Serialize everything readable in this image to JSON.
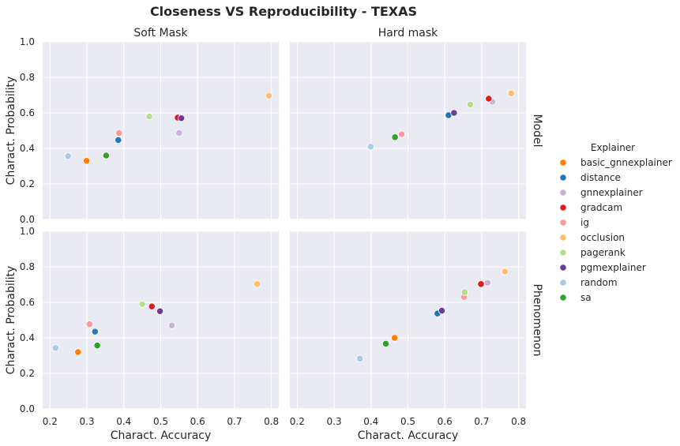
{
  "chart_data": {
    "type": "scatter",
    "title": "Closeness VS Reproducibility - TEXAS",
    "xlabel": "Charact. Accuracy",
    "ylabel": "Charact. Probability",
    "col_titles": [
      "Soft Mask",
      "Hard mask"
    ],
    "row_titles": [
      "Model",
      "Phenomenon"
    ],
    "xlim": [
      0.18,
      0.82
    ],
    "ylim": [
      0.0,
      1.0
    ],
    "xticks": [
      "0.2",
      "0.3",
      "0.4",
      "0.5",
      "0.6",
      "0.7",
      "0.8"
    ],
    "yticks": [
      "0.0",
      "0.2",
      "0.4",
      "0.6",
      "0.8",
      "1.0"
    ],
    "grid": true,
    "legend": {
      "title": "Explainer",
      "placement": "right",
      "entries": [
        {
          "name": "basic_gnnexplainer",
          "color": "#ff7f00"
        },
        {
          "name": "distance",
          "color": "#1f78b4"
        },
        {
          "name": "gnnexplainer",
          "color": "#cab2d6"
        },
        {
          "name": "gradcam",
          "color": "#e31a1c"
        },
        {
          "name": "ig",
          "color": "#fb9a99"
        },
        {
          "name": "occlusion",
          "color": "#fdbf6f"
        },
        {
          "name": "pagerank",
          "color": "#b2df8a"
        },
        {
          "name": "pgmexplainer",
          "color": "#6a3d9a"
        },
        {
          "name": "random",
          "color": "#a6cee3"
        },
        {
          "name": "sa",
          "color": "#33a02c"
        }
      ]
    },
    "panels": [
      {
        "row": "Model",
        "col": "Soft Mask",
        "points": [
          {
            "explainer": "basic_gnnexplainer",
            "x": 0.299,
            "y": 0.33
          },
          {
            "explainer": "distance",
            "x": 0.385,
            "y": 0.447
          },
          {
            "explainer": "gnnexplainer",
            "x": 0.55,
            "y": 0.487
          },
          {
            "explainer": "gradcam",
            "x": 0.546,
            "y": 0.573
          },
          {
            "explainer": "ig",
            "x": 0.387,
            "y": 0.487
          },
          {
            "explainer": "occlusion",
            "x": 0.793,
            "y": 0.697
          },
          {
            "explainer": "pagerank",
            "x": 0.469,
            "y": 0.58
          },
          {
            "explainer": "pgmexplainer",
            "x": 0.556,
            "y": 0.57
          },
          {
            "explainer": "random",
            "x": 0.249,
            "y": 0.357
          },
          {
            "explainer": "sa",
            "x": 0.352,
            "y": 0.36
          }
        ]
      },
      {
        "row": "Model",
        "col": "Hard mask",
        "points": [
          {
            "explainer": "basic_gnnexplainer",
            "x": 0.484,
            "y": 0.48
          },
          {
            "explainer": "distance",
            "x": 0.61,
            "y": 0.587
          },
          {
            "explainer": "gnnexplainer",
            "x": 0.729,
            "y": 0.663
          },
          {
            "explainer": "gradcam",
            "x": 0.719,
            "y": 0.68
          },
          {
            "explainer": "ig",
            "x": 0.483,
            "y": 0.48
          },
          {
            "explainer": "occlusion",
            "x": 0.78,
            "y": 0.71
          },
          {
            "explainer": "pagerank",
            "x": 0.669,
            "y": 0.647
          },
          {
            "explainer": "pgmexplainer",
            "x": 0.625,
            "y": 0.6
          },
          {
            "explainer": "random",
            "x": 0.399,
            "y": 0.41
          },
          {
            "explainer": "sa",
            "x": 0.465,
            "y": 0.463
          }
        ]
      },
      {
        "row": "Phenomenon",
        "col": "Soft Mask",
        "points": [
          {
            "explainer": "basic_gnnexplainer",
            "x": 0.276,
            "y": 0.32
          },
          {
            "explainer": "distance",
            "x": 0.322,
            "y": 0.435
          },
          {
            "explainer": "gnnexplainer",
            "x": 0.53,
            "y": 0.47
          },
          {
            "explainer": "gradcam",
            "x": 0.476,
            "y": 0.577
          },
          {
            "explainer": "ig",
            "x": 0.307,
            "y": 0.477
          },
          {
            "explainer": "occlusion",
            "x": 0.761,
            "y": 0.703
          },
          {
            "explainer": "pagerank",
            "x": 0.45,
            "y": 0.59
          },
          {
            "explainer": "pgmexplainer",
            "x": 0.498,
            "y": 0.55
          },
          {
            "explainer": "random",
            "x": 0.215,
            "y": 0.343
          },
          {
            "explainer": "sa",
            "x": 0.328,
            "y": 0.357
          }
        ]
      },
      {
        "row": "Phenomenon",
        "col": "Hard mask",
        "points": [
          {
            "explainer": "basic_gnnexplainer",
            "x": 0.464,
            "y": 0.4
          },
          {
            "explainer": "distance",
            "x": 0.58,
            "y": 0.537
          },
          {
            "explainer": "gnnexplainer",
            "x": 0.716,
            "y": 0.71
          },
          {
            "explainer": "gradcam",
            "x": 0.698,
            "y": 0.703
          },
          {
            "explainer": "ig",
            "x": 0.652,
            "y": 0.63
          },
          {
            "explainer": "occlusion",
            "x": 0.763,
            "y": 0.773
          },
          {
            "explainer": "pagerank",
            "x": 0.654,
            "y": 0.657
          },
          {
            "explainer": "pgmexplainer",
            "x": 0.592,
            "y": 0.553
          },
          {
            "explainer": "random",
            "x": 0.37,
            "y": 0.283
          },
          {
            "explainer": "sa",
            "x": 0.44,
            "y": 0.367
          }
        ]
      }
    ]
  }
}
